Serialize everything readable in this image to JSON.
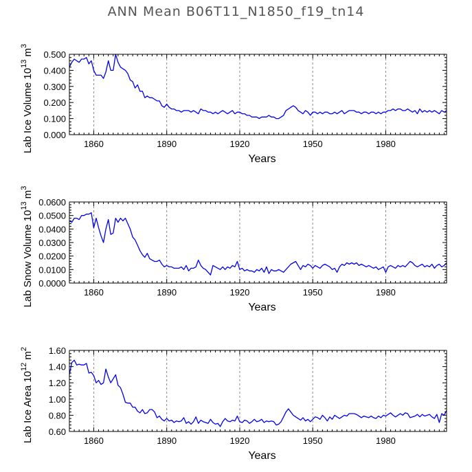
{
  "title": "ANN Mean B06T11_N1850_f19_tn14",
  "colors": {
    "series": "#0000ee",
    "grid": "#888888",
    "axis": "#000000"
  },
  "chart_data": [
    {
      "type": "line",
      "ylabel_main": "Lab Ice Volume 10",
      "ylabel_exp": "13",
      "ylabel_unit": " m",
      "ylabel_unit_exp": "3",
      "xlabel": "Years",
      "xlim": [
        1850,
        2005
      ],
      "ylim": [
        0.0,
        0.5
      ],
      "xticks": [
        "1860",
        "1890",
        "1920",
        "1950",
        "1980"
      ],
      "yticks": [
        "0.000",
        "0.100",
        "0.200",
        "0.300",
        "0.400",
        "0.500"
      ],
      "gridlines_x": [
        1860,
        1890,
        1920,
        1950,
        1980
      ],
      "x": [
        1850,
        1851,
        1852,
        1853,
        1854,
        1855,
        1856,
        1857,
        1858,
        1859,
        1860,
        1861,
        1862,
        1863,
        1864,
        1865,
        1866,
        1867,
        1868,
        1869,
        1870,
        1871,
        1872,
        1873,
        1874,
        1875,
        1876,
        1877,
        1878,
        1879,
        1880,
        1881,
        1882,
        1883,
        1884,
        1885,
        1886,
        1887,
        1888,
        1889,
        1890,
        1891,
        1892,
        1893,
        1894,
        1895,
        1896,
        1897,
        1898,
        1899,
        1900,
        1901,
        1902,
        1903,
        1904,
        1905,
        1906,
        1907,
        1908,
        1909,
        1910,
        1911,
        1912,
        1913,
        1914,
        1915,
        1916,
        1917,
        1918,
        1919,
        1920,
        1921,
        1922,
        1923,
        1924,
        1925,
        1926,
        1927,
        1928,
        1929,
        1930,
        1931,
        1932,
        1933,
        1934,
        1935,
        1936,
        1937,
        1938,
        1939,
        1940,
        1941,
        1942,
        1943,
        1944,
        1945,
        1946,
        1947,
        1948,
        1949,
        1950,
        1951,
        1952,
        1953,
        1954,
        1955,
        1956,
        1957,
        1958,
        1959,
        1960,
        1961,
        1962,
        1963,
        1964,
        1965,
        1966,
        1967,
        1968,
        1969,
        1970,
        1971,
        1972,
        1973,
        1974,
        1975,
        1976,
        1977,
        1978,
        1979,
        1980,
        1981,
        1982,
        1983,
        1984,
        1985,
        1986,
        1987,
        1988,
        1989,
        1990,
        1991,
        1992,
        1993,
        1994,
        1995,
        1996,
        1997,
        1998,
        1999,
        2000,
        2001,
        2002,
        2003,
        2004,
        2005
      ],
      "values": [
        0.42,
        0.45,
        0.47,
        0.46,
        0.45,
        0.47,
        0.47,
        0.48,
        0.44,
        0.46,
        0.4,
        0.37,
        0.37,
        0.37,
        0.35,
        0.39,
        0.46,
        0.4,
        0.4,
        0.5,
        0.45,
        0.42,
        0.41,
        0.4,
        0.38,
        0.34,
        0.33,
        0.29,
        0.31,
        0.27,
        0.27,
        0.23,
        0.24,
        0.23,
        0.23,
        0.22,
        0.21,
        0.21,
        0.18,
        0.17,
        0.19,
        0.17,
        0.16,
        0.16,
        0.15,
        0.15,
        0.14,
        0.15,
        0.15,
        0.15,
        0.14,
        0.15,
        0.14,
        0.13,
        0.16,
        0.15,
        0.15,
        0.14,
        0.14,
        0.13,
        0.14,
        0.13,
        0.14,
        0.15,
        0.14,
        0.13,
        0.14,
        0.15,
        0.13,
        0.14,
        0.14,
        0.13,
        0.13,
        0.12,
        0.12,
        0.11,
        0.11,
        0.11,
        0.1,
        0.11,
        0.11,
        0.11,
        0.12,
        0.11,
        0.11,
        0.1,
        0.1,
        0.11,
        0.12,
        0.15,
        0.16,
        0.17,
        0.18,
        0.17,
        0.15,
        0.14,
        0.13,
        0.15,
        0.14,
        0.12,
        0.14,
        0.14,
        0.13,
        0.14,
        0.13,
        0.14,
        0.14,
        0.13,
        0.13,
        0.14,
        0.13,
        0.14,
        0.15,
        0.13,
        0.14,
        0.15,
        0.15,
        0.15,
        0.14,
        0.14,
        0.13,
        0.14,
        0.14,
        0.13,
        0.14,
        0.14,
        0.13,
        0.14,
        0.13,
        0.14,
        0.14,
        0.15,
        0.15,
        0.16,
        0.15,
        0.16,
        0.16,
        0.15,
        0.15,
        0.16,
        0.15,
        0.14,
        0.15,
        0.13,
        0.16,
        0.14,
        0.15,
        0.14,
        0.15,
        0.14,
        0.15,
        0.14,
        0.13,
        0.15,
        0.14,
        0.15
      ]
    },
    {
      "type": "line",
      "ylabel_main": "Lab Snow Volume 10",
      "ylabel_exp": "13",
      "ylabel_unit": " m",
      "ylabel_unit_exp": "3",
      "xlabel": "Years",
      "xlim": [
        1850,
        2005
      ],
      "ylim": [
        0.0,
        0.06
      ],
      "xticks": [
        "1860",
        "1890",
        "1920",
        "1950",
        "1980"
      ],
      "yticks": [
        "0.0000",
        "0.0100",
        "0.0200",
        "0.0300",
        "0.0400",
        "0.0500",
        "0.0600"
      ],
      "gridlines_x": [
        1860,
        1890,
        1920,
        1950,
        1980
      ],
      "x": [
        1850,
        1851,
        1852,
        1853,
        1854,
        1855,
        1856,
        1857,
        1858,
        1859,
        1860,
        1861,
        1862,
        1863,
        1864,
        1865,
        1866,
        1867,
        1868,
        1869,
        1870,
        1871,
        1872,
        1873,
        1874,
        1875,
        1876,
        1877,
        1878,
        1879,
        1880,
        1881,
        1882,
        1883,
        1884,
        1885,
        1886,
        1887,
        1888,
        1889,
        1890,
        1891,
        1892,
        1893,
        1894,
        1895,
        1896,
        1897,
        1898,
        1899,
        1900,
        1901,
        1902,
        1903,
        1904,
        1905,
        1906,
        1907,
        1908,
        1909,
        1910,
        1911,
        1912,
        1913,
        1914,
        1915,
        1916,
        1917,
        1918,
        1919,
        1920,
        1921,
        1922,
        1923,
        1924,
        1925,
        1926,
        1927,
        1928,
        1929,
        1930,
        1931,
        1932,
        1933,
        1934,
        1935,
        1936,
        1937,
        1938,
        1939,
        1940,
        1941,
        1942,
        1943,
        1944,
        1945,
        1946,
        1947,
        1948,
        1949,
        1950,
        1951,
        1952,
        1953,
        1954,
        1955,
        1956,
        1957,
        1958,
        1959,
        1960,
        1961,
        1962,
        1963,
        1964,
        1965,
        1966,
        1967,
        1968,
        1969,
        1970,
        1971,
        1972,
        1973,
        1974,
        1975,
        1976,
        1977,
        1978,
        1979,
        1980,
        1981,
        1982,
        1983,
        1984,
        1985,
        1986,
        1987,
        1988,
        1989,
        1990,
        1991,
        1992,
        1993,
        1994,
        1995,
        1996,
        1997,
        1998,
        1999,
        2000,
        2001,
        2002,
        2003,
        2004,
        2005
      ],
      "values": [
        0.046,
        0.045,
        0.048,
        0.048,
        0.047,
        0.05,
        0.05,
        0.051,
        0.051,
        0.052,
        0.041,
        0.048,
        0.041,
        0.035,
        0.03,
        0.04,
        0.047,
        0.036,
        0.037,
        0.048,
        0.045,
        0.048,
        0.046,
        0.048,
        0.044,
        0.04,
        0.034,
        0.032,
        0.028,
        0.024,
        0.021,
        0.019,
        0.022,
        0.018,
        0.017,
        0.016,
        0.016,
        0.017,
        0.014,
        0.012,
        0.013,
        0.012,
        0.012,
        0.011,
        0.011,
        0.011,
        0.012,
        0.01,
        0.013,
        0.009,
        0.011,
        0.011,
        0.012,
        0.017,
        0.013,
        0.011,
        0.01,
        0.008,
        0.006,
        0.013,
        0.012,
        0.011,
        0.01,
        0.012,
        0.01,
        0.012,
        0.011,
        0.013,
        0.012,
        0.016,
        0.01,
        0.011,
        0.009,
        0.01,
        0.009,
        0.009,
        0.008,
        0.01,
        0.009,
        0.011,
        0.008,
        0.012,
        0.007,
        0.01,
        0.009,
        0.009,
        0.01,
        0.009,
        0.008,
        0.01,
        0.012,
        0.014,
        0.015,
        0.016,
        0.013,
        0.01,
        0.013,
        0.012,
        0.014,
        0.013,
        0.011,
        0.013,
        0.012,
        0.011,
        0.013,
        0.014,
        0.013,
        0.012,
        0.01,
        0.011,
        0.008,
        0.012,
        0.014,
        0.013,
        0.015,
        0.014,
        0.015,
        0.014,
        0.015,
        0.013,
        0.014,
        0.013,
        0.012,
        0.013,
        0.012,
        0.011,
        0.012,
        0.01,
        0.011,
        0.012,
        0.008,
        0.012,
        0.013,
        0.012,
        0.011,
        0.013,
        0.012,
        0.013,
        0.012,
        0.014,
        0.016,
        0.015,
        0.013,
        0.012,
        0.013,
        0.014,
        0.012,
        0.013,
        0.012,
        0.014,
        0.011,
        0.013,
        0.014,
        0.012,
        0.013,
        0.015
      ]
    },
    {
      "type": "line",
      "ylabel_main": "Lab Ice Area 10",
      "ylabel_exp": "12",
      "ylabel_unit": " m",
      "ylabel_unit_exp": "2",
      "xlabel": "Years",
      "xlim": [
        1850,
        2005
      ],
      "ylim": [
        0.6,
        1.6
      ],
      "xticks": [
        "1860",
        "1890",
        "1920",
        "1950",
        "1980"
      ],
      "yticks": [
        "0.60",
        "0.80",
        "1.00",
        "1.20",
        "1.40",
        "1.60"
      ],
      "gridlines_x": [
        1860,
        1890,
        1920,
        1950,
        1980
      ],
      "x": [
        1850,
        1851,
        1852,
        1853,
        1854,
        1855,
        1856,
        1857,
        1858,
        1859,
        1860,
        1861,
        1862,
        1863,
        1864,
        1865,
        1866,
        1867,
        1868,
        1869,
        1870,
        1871,
        1872,
        1873,
        1874,
        1875,
        1876,
        1877,
        1878,
        1879,
        1880,
        1881,
        1882,
        1883,
        1884,
        1885,
        1886,
        1887,
        1888,
        1889,
        1890,
        1891,
        1892,
        1893,
        1894,
        1895,
        1896,
        1897,
        1898,
        1899,
        1900,
        1901,
        1902,
        1903,
        1904,
        1905,
        1906,
        1907,
        1908,
        1909,
        1910,
        1911,
        1912,
        1913,
        1914,
        1915,
        1916,
        1917,
        1918,
        1919,
        1920,
        1921,
        1922,
        1923,
        1924,
        1925,
        1926,
        1927,
        1928,
        1929,
        1930,
        1931,
        1932,
        1933,
        1934,
        1935,
        1936,
        1937,
        1938,
        1939,
        1940,
        1941,
        1942,
        1943,
        1944,
        1945,
        1946,
        1947,
        1948,
        1949,
        1950,
        1951,
        1952,
        1953,
        1954,
        1955,
        1956,
        1957,
        1958,
        1959,
        1960,
        1961,
        1962,
        1963,
        1964,
        1965,
        1966,
        1967,
        1968,
        1969,
        1970,
        1971,
        1972,
        1973,
        1974,
        1975,
        1976,
        1977,
        1978,
        1979,
        1980,
        1981,
        1982,
        1983,
        1984,
        1985,
        1986,
        1987,
        1988,
        1989,
        1990,
        1991,
        1992,
        1993,
        1994,
        1995,
        1996,
        1997,
        1998,
        1999,
        2000,
        2001,
        2002,
        2003,
        2004,
        2005
      ],
      "values": [
        1.3,
        1.45,
        1.48,
        1.42,
        1.43,
        1.42,
        1.42,
        1.44,
        1.32,
        1.33,
        1.29,
        1.2,
        1.23,
        1.18,
        1.2,
        1.37,
        1.27,
        1.2,
        1.25,
        1.3,
        1.17,
        1.14,
        1.06,
        0.96,
        0.95,
        0.95,
        0.9,
        0.9,
        0.85,
        0.83,
        0.87,
        0.82,
        0.83,
        0.87,
        0.87,
        0.84,
        0.77,
        0.79,
        0.75,
        0.73,
        0.76,
        0.73,
        0.74,
        0.71,
        0.73,
        0.72,
        0.73,
        0.77,
        0.7,
        0.72,
        0.69,
        0.72,
        0.78,
        0.7,
        0.74,
        0.72,
        0.71,
        0.7,
        0.75,
        0.71,
        0.69,
        0.7,
        0.66,
        0.72,
        0.76,
        0.73,
        0.72,
        0.74,
        0.73,
        0.79,
        0.72,
        0.71,
        0.74,
        0.73,
        0.7,
        0.72,
        0.75,
        0.72,
        0.73,
        0.75,
        0.71,
        0.73,
        0.72,
        0.73,
        0.72,
        0.68,
        0.69,
        0.72,
        0.78,
        0.84,
        0.88,
        0.84,
        0.8,
        0.78,
        0.76,
        0.74,
        0.77,
        0.73,
        0.75,
        0.72,
        0.75,
        0.78,
        0.77,
        0.75,
        0.8,
        0.77,
        0.73,
        0.78,
        0.75,
        0.8,
        0.78,
        0.76,
        0.78,
        0.8,
        0.79,
        0.82,
        0.82,
        0.82,
        0.81,
        0.79,
        0.77,
        0.79,
        0.78,
        0.77,
        0.79,
        0.77,
        0.76,
        0.79,
        0.77,
        0.8,
        0.79,
        0.81,
        0.83,
        0.8,
        0.78,
        0.8,
        0.82,
        0.8,
        0.83,
        0.82,
        0.77,
        0.78,
        0.79,
        0.81,
        0.78,
        0.81,
        0.79,
        0.8,
        0.81,
        0.78,
        0.76,
        0.81,
        0.71,
        0.82,
        0.8,
        0.86
      ]
    }
  ]
}
